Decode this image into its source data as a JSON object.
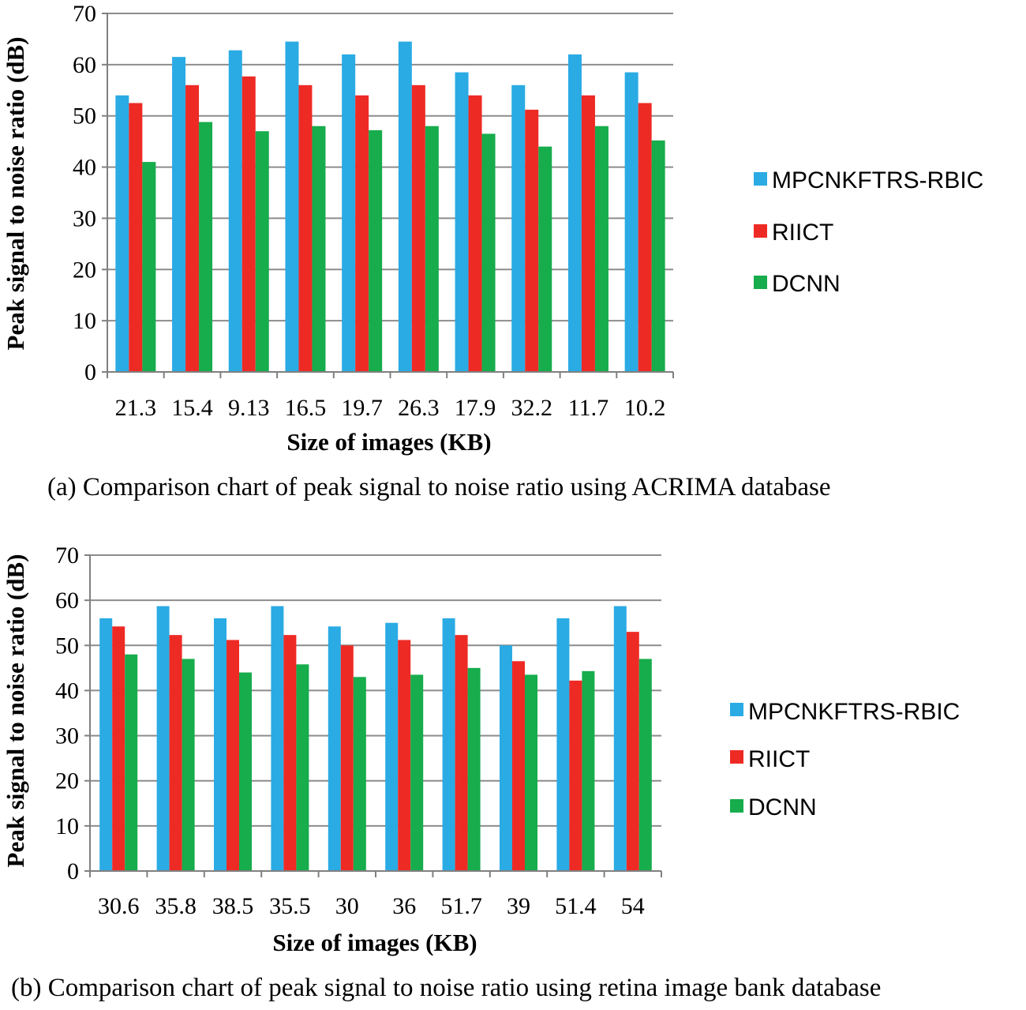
{
  "colors": {
    "series_1": "#2aabe4",
    "series_2": "#ee2a25",
    "series_3": "#17ac4c",
    "grid": "#8c8c8c",
    "axis": "#808080"
  },
  "chart_data": [
    {
      "type": "bar",
      "title": "",
      "caption": "(a) Comparison chart of peak signal to noise ratio using ACRIMA database",
      "xlabel": "Size of images  (KB)",
      "ylabel": "Peak signal to noise ratio (dB)",
      "ylim": [
        0,
        70
      ],
      "yticks": [
        "0",
        "10",
        "20",
        "30",
        "40",
        "50",
        "60",
        "70"
      ],
      "grid": true,
      "legend_position": "right",
      "categories": [
        "21.3",
        "15.4",
        "9.13",
        "16.5",
        "19.7",
        "26.3",
        "17.9",
        "32.2",
        "11.7",
        "10.2"
      ],
      "series": [
        {
          "name": "MPCNKFTRS-RBIC",
          "values": [
            54,
            61.5,
            62.8,
            64.5,
            62,
            64.5,
            58.5,
            56,
            62,
            58.5
          ]
        },
        {
          "name": "RIICT",
          "values": [
            52.5,
            56,
            57.7,
            56,
            54,
            56,
            54,
            51.2,
            54,
            52.5
          ]
        },
        {
          "name": "DCNN",
          "values": [
            41,
            48.8,
            47,
            48,
            47.2,
            48,
            46.5,
            44,
            48,
            45.2
          ]
        }
      ]
    },
    {
      "type": "bar",
      "title": "",
      "caption": "(b) Comparison chart of peak signal to noise ratio using retina image bank database",
      "xlabel": "Size of images (KB)",
      "ylabel": "Peak signal to noise ratio (dB)",
      "ylim": [
        0,
        70
      ],
      "yticks": [
        "0",
        "10",
        "20",
        "30",
        "40",
        "50",
        "60",
        "70"
      ],
      "grid": true,
      "legend_position": "right",
      "categories": [
        "30.6",
        "35.8",
        "38.5",
        "35.5",
        "30",
        "36",
        "51.7",
        "39",
        "51.4",
        "54"
      ],
      "series": [
        {
          "name": "MPCNKFTRS-RBIC",
          "values": [
            56,
            58.7,
            56,
            58.7,
            54.2,
            55,
            56,
            50,
            56,
            58.7
          ]
        },
        {
          "name": "RIICT",
          "values": [
            54.2,
            52.3,
            51.2,
            52.3,
            50,
            51.2,
            52.3,
            46.5,
            42.2,
            53
          ]
        },
        {
          "name": "DCNN",
          "values": [
            48,
            47,
            44,
            45.8,
            43,
            43.5,
            45,
            43.5,
            44.3,
            47
          ]
        }
      ]
    }
  ]
}
